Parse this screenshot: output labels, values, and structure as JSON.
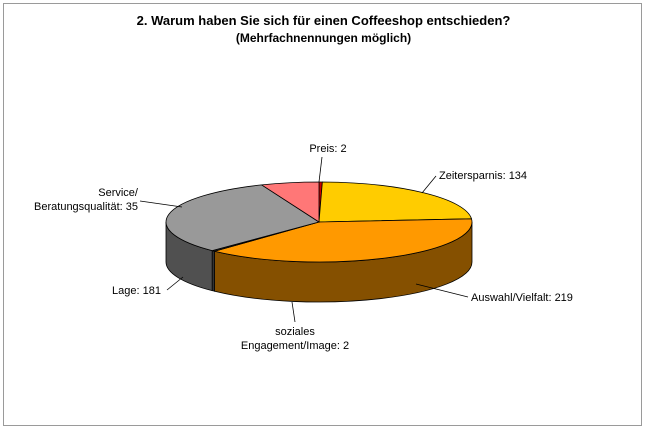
{
  "chart_data": {
    "type": "pie",
    "title": "2. Warum haben Sie sich für einen Coffeeshop entschieden?",
    "subtitle": "(Mehrfachnennungen möglich)",
    "categories": [
      "Preis",
      "Zeitersparnis",
      "Auswahl/Vielfalt",
      "soziales Engagement/Image",
      "Lage",
      "Service/ Beratungsqualität"
    ],
    "values": [
      2,
      134,
      219,
      2,
      181,
      35
    ],
    "colors": [
      "#cc0000",
      "#ffcc00",
      "#ff9900",
      "#333333",
      "#999999",
      "#ff7777"
    ],
    "labels": [
      [
        "Preis: 2"
      ],
      [
        "Zeitersparnis: 134"
      ],
      [
        "Auswahl/Vielfalt: 219"
      ],
      [
        "soziales",
        "Engagement/Image: 2"
      ],
      [
        "Lage: 181"
      ],
      [
        "Service/",
        "Beratungsqualität: 35"
      ]
    ],
    "style": "3d",
    "legend": "none"
  }
}
